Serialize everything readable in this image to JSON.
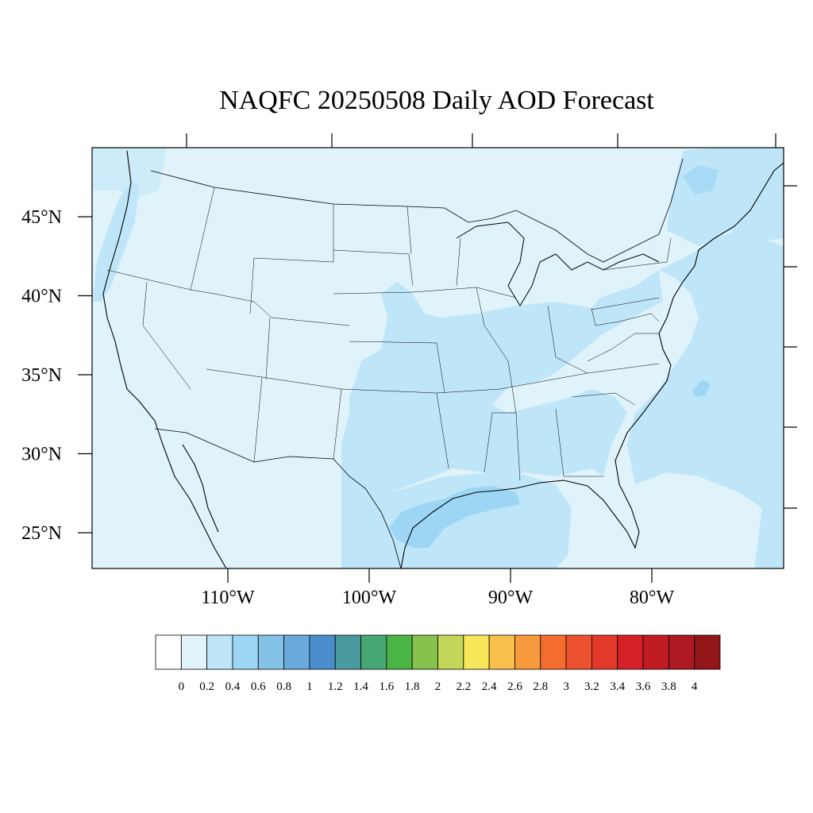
{
  "title": "NAQFC 20250508 Daily AOD Forecast",
  "map": {
    "type": "filled-contour-map",
    "variable": "AOD",
    "region": "CONUS",
    "lon_range": [
      -119,
      -72
    ],
    "lat_range": [
      22.5,
      49.2
    ],
    "lat_ticks": [
      {
        "value": 45,
        "label": "45°N"
      },
      {
        "value": 40,
        "label": "40°N"
      },
      {
        "value": 35,
        "label": "35°N"
      },
      {
        "value": 30,
        "label": "30°N"
      },
      {
        "value": 25,
        "label": "25°N"
      }
    ],
    "lon_ticks": [
      {
        "value": -110,
        "label": "110°W"
      },
      {
        "value": -100,
        "label": "100°W"
      },
      {
        "value": -90,
        "label": "90°W"
      },
      {
        "value": -80,
        "label": "80°W"
      }
    ]
  },
  "colorbar": {
    "labels": [
      "0",
      "0.2",
      "0.4",
      "0.6",
      "0.8",
      "1",
      "1.2",
      "1.4",
      "1.6",
      "1.8",
      "2",
      "2.2",
      "2.4",
      "2.6",
      "2.8",
      "3",
      "3.2",
      "3.4",
      "3.6",
      "3.8",
      "4"
    ],
    "colors": [
      "#ffffff",
      "#e0f3fb",
      "#bfe6f8",
      "#9dd6f4",
      "#84c2e8",
      "#6aa9dc",
      "#4a8fcb",
      "#4a9aa0",
      "#47a874",
      "#4ab544",
      "#86c24c",
      "#c4d657",
      "#f7e65a",
      "#f8bf4c",
      "#f7993d",
      "#f46c2e",
      "#ec5230",
      "#e23a2a",
      "#d42027",
      "#c11c24",
      "#ad1a21",
      "#921518"
    ]
  }
}
